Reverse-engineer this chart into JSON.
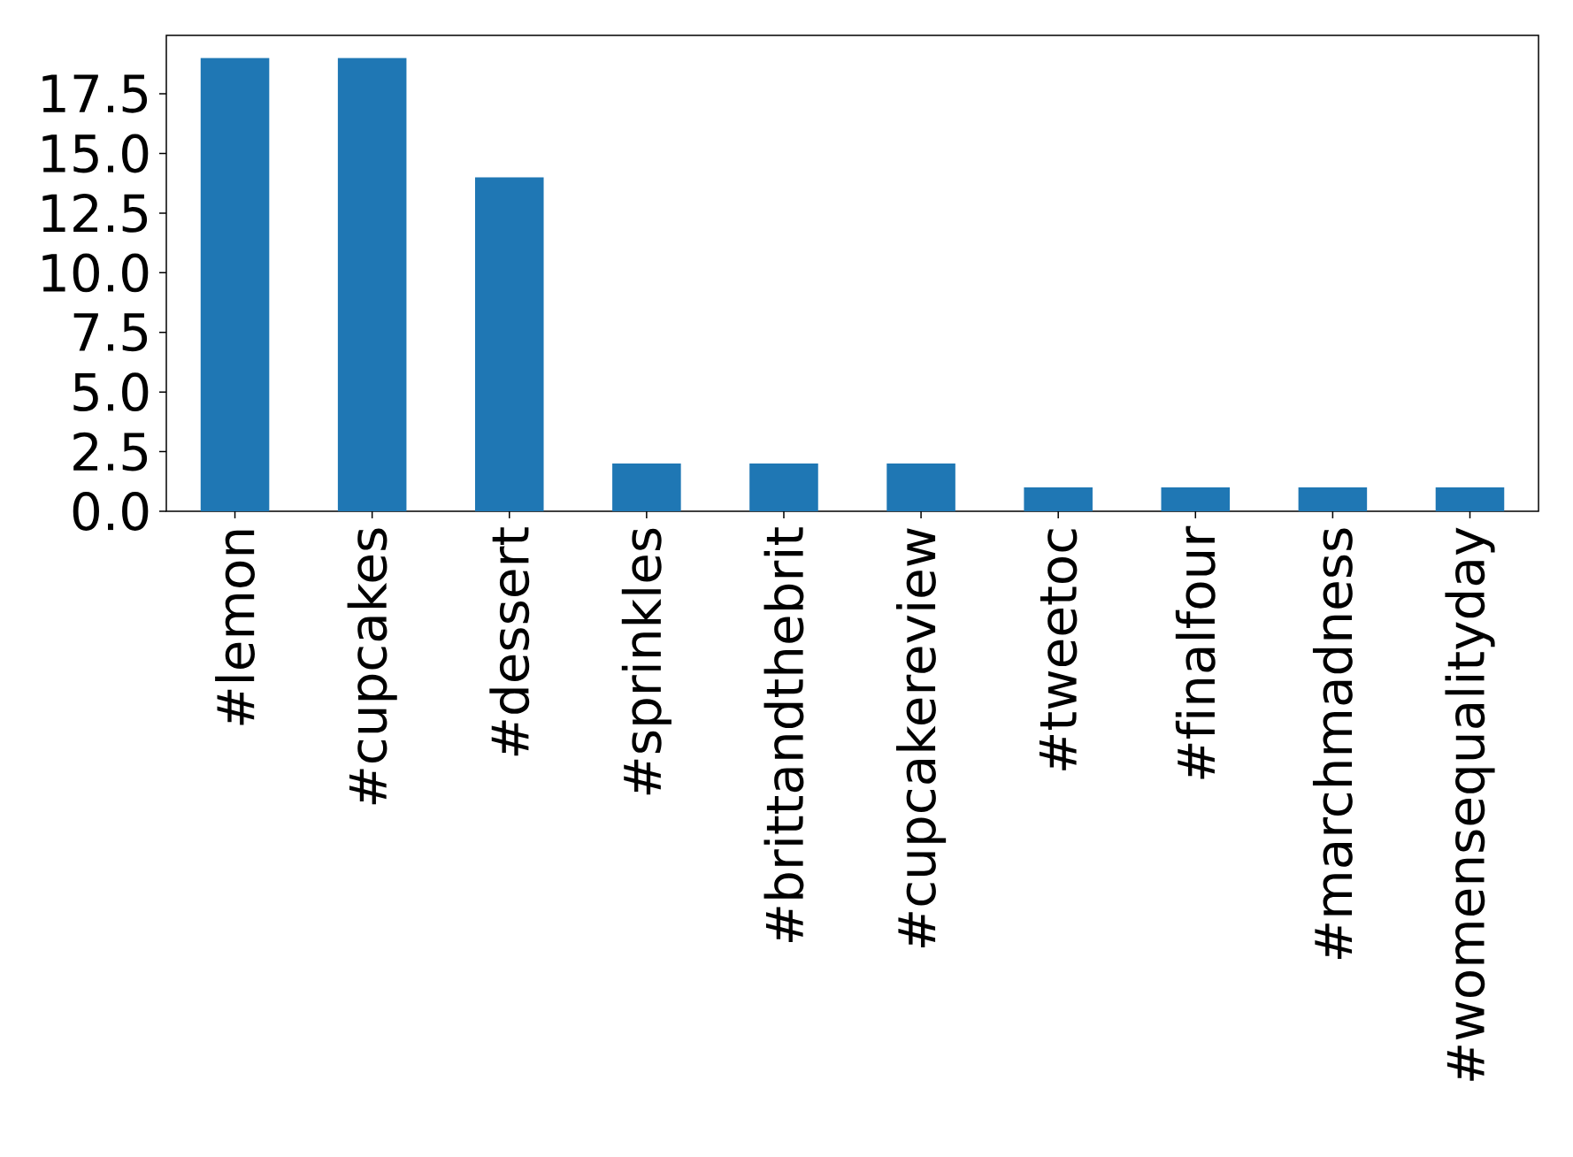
{
  "chart_data": {
    "type": "bar",
    "categories": [
      "#lemon",
      "#cupcakes",
      "#dessert",
      "#sprinkles",
      "#brittandthebrit",
      "#cupcakereview",
      "#tweetoc",
      "#finalfour",
      "#marchmadness",
      "#womensequalityday"
    ],
    "values": [
      19,
      19,
      14,
      2,
      2,
      2,
      1,
      1,
      1,
      1
    ],
    "color": "#1f77b4",
    "ylim": [
      0,
      19.95
    ],
    "yticks": [
      {
        "value": 0,
        "label": "0.0"
      },
      {
        "value": 2.5,
        "label": "2.5"
      },
      {
        "value": 5,
        "label": "5.0"
      },
      {
        "value": 7.5,
        "label": "7.5"
      },
      {
        "value": 10,
        "label": "10.0"
      },
      {
        "value": 12.5,
        "label": "12.5"
      },
      {
        "value": 15,
        "label": "15.0"
      },
      {
        "value": 17.5,
        "label": "17.5"
      }
    ],
    "grid": false
  }
}
